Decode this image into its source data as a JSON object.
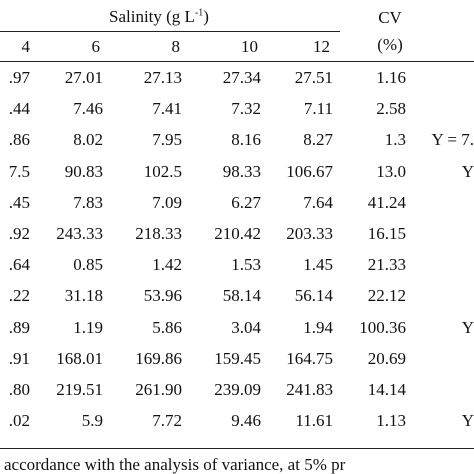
{
  "header": {
    "group_label_prefix": "Salinity (g L",
    "group_label_sup": "-1",
    "group_label_suffix": ")",
    "cv_line1": "CV",
    "cv_line2": "(%)",
    "columns": [
      "4",
      "6",
      "8",
      "10",
      "12"
    ]
  },
  "rows": [
    {
      "c4": ".97",
      "c6": "27.01",
      "c8": "27.13",
      "c10": "27.34",
      "c12": "27.51",
      "cv": "1.16",
      "eq": ""
    },
    {
      "c4": ".44",
      "c6": "7.46",
      "c8": "7.41",
      "c10": "7.32",
      "c12": "7.11",
      "cv": "2.58",
      "eq": ""
    },
    {
      "c4": ".86",
      "c6": "8.02",
      "c8": "7.95",
      "c10": "8.16",
      "c12": "8.27",
      "cv": "1.3",
      "eq": "Y = 7."
    },
    {
      "c4": "7.5",
      "c6": "90.83",
      "c8": "102.5",
      "c10": "98.33",
      "c12": "106.67",
      "cv": "13.0",
      "eq": "Y"
    },
    {
      "c4": ".45",
      "c6": "7.83",
      "c8": "7.09",
      "c10": "6.27",
      "c12": "7.64",
      "cv": "41.24",
      "eq": ""
    },
    {
      "c4": ".92",
      "c6": "243.33",
      "c8": "218.33",
      "c10": "210.42",
      "c12": "203.33",
      "cv": "16.15",
      "eq": ""
    },
    {
      "c4": ".64",
      "c6": "0.85",
      "c8": "1.42",
      "c10": "1.53",
      "c12": "1.45",
      "cv": "21.33",
      "eq": ""
    },
    {
      "c4": ".22",
      "c6": "31.18",
      "c8": "53.96",
      "c10": "58.14",
      "c12": "56.14",
      "cv": "22.12",
      "eq": ""
    },
    {
      "c4": ".89",
      "c6": "1.19",
      "c8": "5.86",
      "c10": "3.04",
      "c12": "1.94",
      "cv": "100.36",
      "eq": "Y"
    },
    {
      "c4": ".91",
      "c6": "168.01",
      "c8": "169.86",
      "c10": "159.45",
      "c12": "164.75",
      "cv": "20.69",
      "eq": ""
    },
    {
      "c4": ".80",
      "c6": "219.51",
      "c8": "261.90",
      "c10": "239.09",
      "c12": "241.83",
      "cv": "14.14",
      "eq": ""
    },
    {
      "c4": ".02",
      "c6": "5.9",
      "c8": "7.72",
      "c10": "9.46",
      "c12": "11.61",
      "cv": "1.13",
      "eq": "Y"
    }
  ],
  "footnote": "accordance with the analysis of variance, at 5% pr"
}
